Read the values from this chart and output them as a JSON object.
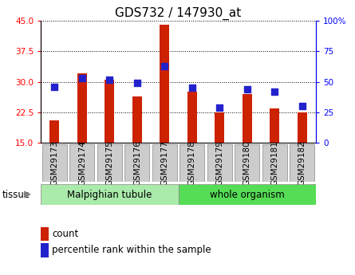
{
  "title": "GDS732 / 147930_at",
  "categories": [
    "GSM29173",
    "GSM29174",
    "GSM29175",
    "GSM29176",
    "GSM29177",
    "GSM29178",
    "GSM29179",
    "GSM29180",
    "GSM29181",
    "GSM29182"
  ],
  "counts": [
    20.5,
    32.0,
    30.5,
    26.5,
    44.0,
    27.5,
    22.5,
    27.0,
    23.5,
    22.5
  ],
  "percentiles": [
    46,
    53,
    52,
    49,
    63,
    45,
    29,
    44,
    42,
    30
  ],
  "ylim_left": [
    15,
    45
  ],
  "ylim_right": [
    0,
    100
  ],
  "yticks_left": [
    15,
    22.5,
    30,
    37.5,
    45
  ],
  "yticks_right": [
    0,
    25,
    50,
    75,
    100
  ],
  "bar_color": "#cc2200",
  "dot_color": "#2222cc",
  "bar_width": 0.35,
  "dot_size": 36,
  "tissue_groups": [
    {
      "label": "Malpighian tubule",
      "indices": [
        0,
        1,
        2,
        3,
        4
      ],
      "color": "#aaeaaa"
    },
    {
      "label": "whole organism",
      "indices": [
        5,
        6,
        7,
        8,
        9
      ],
      "color": "#55dd55"
    }
  ],
  "tissue_label": "tissue",
  "legend_count_label": "count",
  "legend_percentile_label": "percentile rank within the sample",
  "grid_color": "black",
  "tick_fontsize": 7.5,
  "label_fontsize": 8.5,
  "title_fontsize": 11
}
